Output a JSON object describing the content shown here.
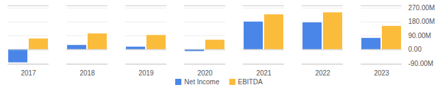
{
  "chart_data": {
    "type": "bar",
    "categories": [
      "2017",
      "2018",
      "2019",
      "2020",
      "2021",
      "2022",
      "2023"
    ],
    "series": [
      {
        "name": "Net Income",
        "color": "#4a86e8",
        "values": [
          -85,
          28,
          17,
          -12,
          180,
          175,
          74
        ]
      },
      {
        "name": "EBITDA",
        "color": "#fbbc3c",
        "values": [
          70,
          103,
          93,
          62,
          227,
          240,
          152
        ]
      }
    ],
    "ylim": [
      -95,
      285
    ],
    "yticks": [
      {
        "value": -90,
        "label": "-90.00M"
      },
      {
        "value": 0,
        "label": "0.00"
      },
      {
        "value": 90,
        "label": "90.00M"
      },
      {
        "value": 180,
        "label": "180.00M"
      },
      {
        "value": 270,
        "label": "270.00M"
      }
    ],
    "grid": true,
    "legend": "bottom"
  }
}
